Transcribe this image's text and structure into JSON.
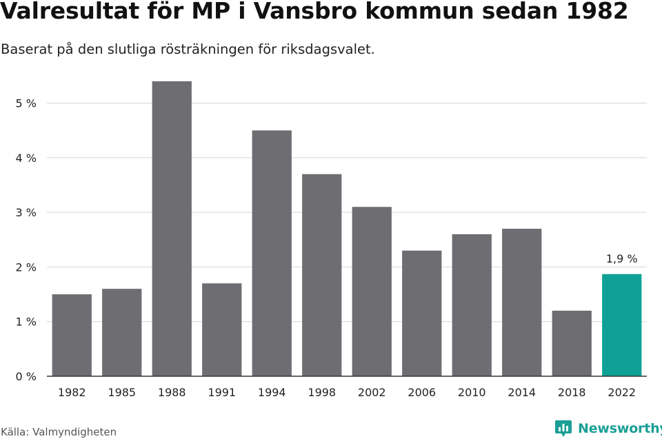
{
  "chart_data": {
    "type": "bar",
    "title": "Valresultat för MP i Vansbro kommun sedan 1982",
    "subtitle": "Baserat på den slutliga rösträkningen för riksdagsvalet.",
    "categories": [
      "1982",
      "1985",
      "1988",
      "1991",
      "1994",
      "1998",
      "2002",
      "2006",
      "2010",
      "2014",
      "2018",
      "2022"
    ],
    "values": [
      1.5,
      1.6,
      5.4,
      1.7,
      4.5,
      3.7,
      3.1,
      2.3,
      2.6,
      2.7,
      1.2,
      1.87
    ],
    "highlight_index": 11,
    "highlight_label": "1,9 %",
    "ylim": [
      0,
      5.5
    ],
    "yticks": [
      0,
      1,
      2,
      3,
      4,
      5
    ],
    "ytick_labels": [
      "0 %",
      "1 %",
      "2 %",
      "3 %",
      "4 %",
      "5 %"
    ],
    "grid": true,
    "colors": {
      "bar": "#6e6d72",
      "highlight": "#0fa195",
      "grid": "#dcdcdc",
      "axis": "#333333"
    }
  },
  "footer": {
    "source": "Källa: Valmyndigheten",
    "brand": "Newsworthy"
  }
}
